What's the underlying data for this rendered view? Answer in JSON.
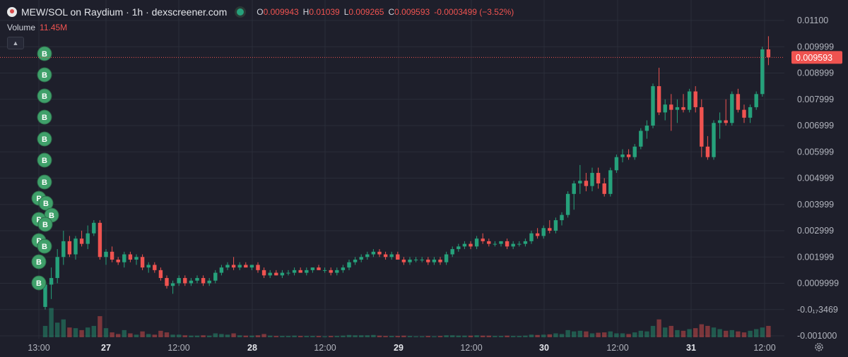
{
  "header": {
    "pair_title": "MEW/SOL on Raydium · 1h · dexscreener.com",
    "open_key": "O",
    "open_val": "0.009943",
    "high_key": "H",
    "high_val": "0.01039",
    "low_key": "L",
    "low_val": "0.009265",
    "close_key": "C",
    "close_val": "0.009593",
    "change": "-0.0003499 (−3.52%)"
  },
  "volume": {
    "label": "Volume",
    "value": "11.45M"
  },
  "icons": {
    "logo": "mew-cat-logo",
    "live": "live-status-dot",
    "collapse": "chevron-up-icon",
    "settings": "gear-icon"
  },
  "colors": {
    "up": "#26a17b",
    "down": "#ef5350",
    "background": "#1e1f2b",
    "grid": "#2a2d39",
    "marker": "#3fa06a"
  },
  "chart_data": {
    "type": "candlestick",
    "price_axis_ticks": [
      "0.01100",
      "0.009999",
      "0.008999",
      "0.007999",
      "0.006999",
      "0.005999",
      "0.004999",
      "0.003999",
      "0.002999",
      "0.001999",
      "0.0009999",
      "-0.0₁₇3469",
      "-0.001000"
    ],
    "current_price_label": "0.009593",
    "time_axis_ticks": [
      "13:00",
      "27",
      "12:00",
      "28",
      "12:00",
      "29",
      "12:00",
      "30",
      "12:00",
      "31",
      "12:00"
    ],
    "y_range": [
      -0.001,
      0.011
    ],
    "volume_max": 1,
    "candles": [
      {
        "o": 0.0001,
        "h": 0.0011,
        "l": 0.0,
        "c": 0.00095,
        "v": 0.35
      },
      {
        "o": 0.00095,
        "h": 0.0016,
        "l": 0.0004,
        "c": 0.0012,
        "v": 0.9
      },
      {
        "o": 0.0012,
        "h": 0.0023,
        "l": 0.001,
        "c": 0.002,
        "v": 0.45
      },
      {
        "o": 0.002,
        "h": 0.003,
        "l": 0.0017,
        "c": 0.0026,
        "v": 0.55
      },
      {
        "o": 0.0026,
        "h": 0.0028,
        "l": 0.002,
        "c": 0.0021,
        "v": 0.3
      },
      {
        "o": 0.0021,
        "h": 0.0028,
        "l": 0.0019,
        "c": 0.0027,
        "v": 0.28
      },
      {
        "o": 0.0027,
        "h": 0.003,
        "l": 0.0024,
        "c": 0.0025,
        "v": 0.22
      },
      {
        "o": 0.0025,
        "h": 0.0032,
        "l": 0.0023,
        "c": 0.0029,
        "v": 0.3
      },
      {
        "o": 0.0029,
        "h": 0.0034,
        "l": 0.0028,
        "c": 0.0033,
        "v": 0.35
      },
      {
        "o": 0.0033,
        "h": 0.0034,
        "l": 0.0019,
        "c": 0.002,
        "v": 0.65
      },
      {
        "o": 0.002,
        "h": 0.0023,
        "l": 0.0017,
        "c": 0.0022,
        "v": 0.28
      },
      {
        "o": 0.0022,
        "h": 0.0024,
        "l": 0.0018,
        "c": 0.0019,
        "v": 0.15
      },
      {
        "o": 0.0019,
        "h": 0.002,
        "l": 0.0017,
        "c": 0.0018,
        "v": 0.1
      },
      {
        "o": 0.0018,
        "h": 0.0022,
        "l": 0.0016,
        "c": 0.0021,
        "v": 0.22
      },
      {
        "o": 0.0021,
        "h": 0.0022,
        "l": 0.0018,
        "c": 0.0019,
        "v": 0.12
      },
      {
        "o": 0.0019,
        "h": 0.0021,
        "l": 0.0017,
        "c": 0.002,
        "v": 0.08
      },
      {
        "o": 0.002,
        "h": 0.0021,
        "l": 0.0015,
        "c": 0.0016,
        "v": 0.18
      },
      {
        "o": 0.0016,
        "h": 0.0018,
        "l": 0.0014,
        "c": 0.0017,
        "v": 0.1
      },
      {
        "o": 0.0017,
        "h": 0.0018,
        "l": 0.0014,
        "c": 0.0015,
        "v": 0.08
      },
      {
        "o": 0.0015,
        "h": 0.0016,
        "l": 0.0011,
        "c": 0.0012,
        "v": 0.2
      },
      {
        "o": 0.0012,
        "h": 0.0013,
        "l": 0.0008,
        "c": 0.0009,
        "v": 0.15
      },
      {
        "o": 0.0009,
        "h": 0.0011,
        "l": 0.0006,
        "c": 0.001,
        "v": 0.08
      },
      {
        "o": 0.001,
        "h": 0.0013,
        "l": 0.0009,
        "c": 0.0012,
        "v": 0.08
      },
      {
        "o": 0.0012,
        "h": 0.0013,
        "l": 0.0009,
        "c": 0.001,
        "v": 0.06
      },
      {
        "o": 0.001,
        "h": 0.0012,
        "l": 0.0009,
        "c": 0.0011,
        "v": 0.05
      },
      {
        "o": 0.0011,
        "h": 0.0013,
        "l": 0.001,
        "c": 0.0012,
        "v": 0.05
      },
      {
        "o": 0.0012,
        "h": 0.0013,
        "l": 0.0009,
        "c": 0.001,
        "v": 0.06
      },
      {
        "o": 0.001,
        "h": 0.0012,
        "l": 0.0009,
        "c": 0.0011,
        "v": 0.05
      },
      {
        "o": 0.0011,
        "h": 0.0015,
        "l": 0.001,
        "c": 0.0014,
        "v": 0.12
      },
      {
        "o": 0.0014,
        "h": 0.0017,
        "l": 0.0013,
        "c": 0.0016,
        "v": 0.1
      },
      {
        "o": 0.0016,
        "h": 0.0018,
        "l": 0.0015,
        "c": 0.0017,
        "v": 0.08
      },
      {
        "o": 0.0017,
        "h": 0.002,
        "l": 0.0015,
        "c": 0.0016,
        "v": 0.12
      },
      {
        "o": 0.0016,
        "h": 0.0018,
        "l": 0.0015,
        "c": 0.0017,
        "v": 0.06
      },
      {
        "o": 0.0017,
        "h": 0.0018,
        "l": 0.0016,
        "c": 0.0016,
        "v": 0.05
      },
      {
        "o": 0.0016,
        "h": 0.0017,
        "l": 0.0015,
        "c": 0.0017,
        "v": 0.05
      },
      {
        "o": 0.0017,
        "h": 0.0018,
        "l": 0.0014,
        "c": 0.0015,
        "v": 0.06
      },
      {
        "o": 0.0015,
        "h": 0.0016,
        "l": 0.0012,
        "c": 0.0013,
        "v": 0.1
      },
      {
        "o": 0.0013,
        "h": 0.0015,
        "l": 0.0012,
        "c": 0.0014,
        "v": 0.05
      },
      {
        "o": 0.0014,
        "h": 0.0015,
        "l": 0.0013,
        "c": 0.0013,
        "v": 0.04
      },
      {
        "o": 0.0013,
        "h": 0.0015,
        "l": 0.0012,
        "c": 0.0014,
        "v": 0.04
      },
      {
        "o": 0.0014,
        "h": 0.0015,
        "l": 0.0013,
        "c": 0.0014,
        "v": 0.04
      },
      {
        "o": 0.0014,
        "h": 0.0016,
        "l": 0.0013,
        "c": 0.0015,
        "v": 0.05
      },
      {
        "o": 0.0015,
        "h": 0.0016,
        "l": 0.0014,
        "c": 0.0014,
        "v": 0.04
      },
      {
        "o": 0.0014,
        "h": 0.0016,
        "l": 0.0013,
        "c": 0.0015,
        "v": 0.04
      },
      {
        "o": 0.0015,
        "h": 0.0016,
        "l": 0.0014,
        "c": 0.0016,
        "v": 0.04
      },
      {
        "o": 0.0016,
        "h": 0.0017,
        "l": 0.0015,
        "c": 0.0015,
        "v": 0.04
      },
      {
        "o": 0.0015,
        "h": 0.0016,
        "l": 0.0014,
        "c": 0.0015,
        "v": 0.03
      },
      {
        "o": 0.0015,
        "h": 0.0016,
        "l": 0.0013,
        "c": 0.0014,
        "v": 0.04
      },
      {
        "o": 0.0014,
        "h": 0.0016,
        "l": 0.0013,
        "c": 0.0015,
        "v": 0.04
      },
      {
        "o": 0.0015,
        "h": 0.0017,
        "l": 0.0014,
        "c": 0.0016,
        "v": 0.05
      },
      {
        "o": 0.0016,
        "h": 0.0019,
        "l": 0.0015,
        "c": 0.0018,
        "v": 0.07
      },
      {
        "o": 0.0018,
        "h": 0.002,
        "l": 0.0017,
        "c": 0.0019,
        "v": 0.06
      },
      {
        "o": 0.0019,
        "h": 0.0021,
        "l": 0.0018,
        "c": 0.002,
        "v": 0.06
      },
      {
        "o": 0.002,
        "h": 0.0022,
        "l": 0.0019,
        "c": 0.0021,
        "v": 0.06
      },
      {
        "o": 0.0021,
        "h": 0.0023,
        "l": 0.002,
        "c": 0.0022,
        "v": 0.07
      },
      {
        "o": 0.0022,
        "h": 0.0023,
        "l": 0.002,
        "c": 0.0021,
        "v": 0.05
      },
      {
        "o": 0.0021,
        "h": 0.0022,
        "l": 0.0019,
        "c": 0.002,
        "v": 0.04
      },
      {
        "o": 0.002,
        "h": 0.0022,
        "l": 0.0019,
        "c": 0.0021,
        "v": 0.04
      },
      {
        "o": 0.0021,
        "h": 0.0022,
        "l": 0.0019,
        "c": 0.0019,
        "v": 0.04
      },
      {
        "o": 0.0019,
        "h": 0.002,
        "l": 0.0017,
        "c": 0.0018,
        "v": 0.05
      },
      {
        "o": 0.0018,
        "h": 0.002,
        "l": 0.0017,
        "c": 0.0019,
        "v": 0.04
      },
      {
        "o": 0.0019,
        "h": 0.002,
        "l": 0.0018,
        "c": 0.0019,
        "v": 0.03
      },
      {
        "o": 0.0019,
        "h": 0.002,
        "l": 0.0018,
        "c": 0.0019,
        "v": 0.03
      },
      {
        "o": 0.0019,
        "h": 0.002,
        "l": 0.0017,
        "c": 0.0018,
        "v": 0.04
      },
      {
        "o": 0.0018,
        "h": 0.002,
        "l": 0.0017,
        "c": 0.0019,
        "v": 0.03
      },
      {
        "o": 0.0019,
        "h": 0.002,
        "l": 0.0017,
        "c": 0.0018,
        "v": 0.04
      },
      {
        "o": 0.0018,
        "h": 0.0022,
        "l": 0.0017,
        "c": 0.0021,
        "v": 0.06
      },
      {
        "o": 0.0021,
        "h": 0.0024,
        "l": 0.002,
        "c": 0.0023,
        "v": 0.06
      },
      {
        "o": 0.0023,
        "h": 0.0025,
        "l": 0.0022,
        "c": 0.0024,
        "v": 0.05
      },
      {
        "o": 0.0024,
        "h": 0.0026,
        "l": 0.0023,
        "c": 0.0025,
        "v": 0.05
      },
      {
        "o": 0.0025,
        "h": 0.0026,
        "l": 0.0023,
        "c": 0.0024,
        "v": 0.05
      },
      {
        "o": 0.0024,
        "h": 0.0028,
        "l": 0.0023,
        "c": 0.0027,
        "v": 0.06
      },
      {
        "o": 0.0027,
        "h": 0.0029,
        "l": 0.0025,
        "c": 0.0026,
        "v": 0.05
      },
      {
        "o": 0.0026,
        "h": 0.0027,
        "l": 0.0024,
        "c": 0.0025,
        "v": 0.05
      },
      {
        "o": 0.0025,
        "h": 0.0026,
        "l": 0.0024,
        "c": 0.0025,
        "v": 0.04
      },
      {
        "o": 0.0025,
        "h": 0.0026,
        "l": 0.0024,
        "c": 0.0026,
        "v": 0.04
      },
      {
        "o": 0.0026,
        "h": 0.0027,
        "l": 0.0023,
        "c": 0.0024,
        "v": 0.05
      },
      {
        "o": 0.0024,
        "h": 0.0026,
        "l": 0.0023,
        "c": 0.0025,
        "v": 0.04
      },
      {
        "o": 0.0025,
        "h": 0.0026,
        "l": 0.0024,
        "c": 0.0025,
        "v": 0.04
      },
      {
        "o": 0.0025,
        "h": 0.0027,
        "l": 0.0024,
        "c": 0.0026,
        "v": 0.05
      },
      {
        "o": 0.0026,
        "h": 0.003,
        "l": 0.0025,
        "c": 0.0029,
        "v": 0.08
      },
      {
        "o": 0.0029,
        "h": 0.0031,
        "l": 0.0027,
        "c": 0.0028,
        "v": 0.07
      },
      {
        "o": 0.0028,
        "h": 0.0032,
        "l": 0.0027,
        "c": 0.0031,
        "v": 0.08
      },
      {
        "o": 0.0031,
        "h": 0.0034,
        "l": 0.0029,
        "c": 0.003,
        "v": 0.09
      },
      {
        "o": 0.003,
        "h": 0.0035,
        "l": 0.0029,
        "c": 0.0034,
        "v": 0.12
      },
      {
        "o": 0.0034,
        "h": 0.0037,
        "l": 0.0032,
        "c": 0.0036,
        "v": 0.1
      },
      {
        "o": 0.0036,
        "h": 0.0045,
        "l": 0.0035,
        "c": 0.0044,
        "v": 0.22
      },
      {
        "o": 0.0044,
        "h": 0.0049,
        "l": 0.0038,
        "c": 0.0048,
        "v": 0.18
      },
      {
        "o": 0.0048,
        "h": 0.0055,
        "l": 0.0044,
        "c": 0.0049,
        "v": 0.2
      },
      {
        "o": 0.0049,
        "h": 0.0052,
        "l": 0.0045,
        "c": 0.0047,
        "v": 0.18
      },
      {
        "o": 0.0047,
        "h": 0.0054,
        "l": 0.0045,
        "c": 0.0052,
        "v": 0.12
      },
      {
        "o": 0.0052,
        "h": 0.0054,
        "l": 0.0046,
        "c": 0.0048,
        "v": 0.14
      },
      {
        "o": 0.0048,
        "h": 0.005,
        "l": 0.0043,
        "c": 0.0044,
        "v": 0.15
      },
      {
        "o": 0.0044,
        "h": 0.0054,
        "l": 0.0043,
        "c": 0.0053,
        "v": 0.18
      },
      {
        "o": 0.0053,
        "h": 0.0059,
        "l": 0.0052,
        "c": 0.0058,
        "v": 0.12
      },
      {
        "o": 0.0058,
        "h": 0.0061,
        "l": 0.0056,
        "c": 0.0059,
        "v": 0.12
      },
      {
        "o": 0.0059,
        "h": 0.0061,
        "l": 0.0057,
        "c": 0.0058,
        "v": 0.1
      },
      {
        "o": 0.0058,
        "h": 0.0063,
        "l": 0.0057,
        "c": 0.0062,
        "v": 0.15
      },
      {
        "o": 0.0062,
        "h": 0.0069,
        "l": 0.0061,
        "c": 0.0068,
        "v": 0.2
      },
      {
        "o": 0.0068,
        "h": 0.0072,
        "l": 0.0065,
        "c": 0.007,
        "v": 0.18
      },
      {
        "o": 0.007,
        "h": 0.0086,
        "l": 0.0069,
        "c": 0.0085,
        "v": 0.35
      },
      {
        "o": 0.0085,
        "h": 0.0092,
        "l": 0.0074,
        "c": 0.0075,
        "v": 0.55
      },
      {
        "o": 0.0075,
        "h": 0.008,
        "l": 0.0072,
        "c": 0.0078,
        "v": 0.3
      },
      {
        "o": 0.0078,
        "h": 0.0082,
        "l": 0.0068,
        "c": 0.0076,
        "v": 0.35
      },
      {
        "o": 0.0076,
        "h": 0.008,
        "l": 0.0071,
        "c": 0.0077,
        "v": 0.22
      },
      {
        "o": 0.0077,
        "h": 0.0082,
        "l": 0.0075,
        "c": 0.0076,
        "v": 0.2
      },
      {
        "o": 0.0076,
        "h": 0.0084,
        "l": 0.0075,
        "c": 0.0083,
        "v": 0.25
      },
      {
        "o": 0.0083,
        "h": 0.0085,
        "l": 0.0075,
        "c": 0.0077,
        "v": 0.28
      },
      {
        "o": 0.0077,
        "h": 0.008,
        "l": 0.0058,
        "c": 0.0062,
        "v": 0.4
      },
      {
        "o": 0.0062,
        "h": 0.0066,
        "l": 0.0057,
        "c": 0.0058,
        "v": 0.35
      },
      {
        "o": 0.0058,
        "h": 0.0072,
        "l": 0.0057,
        "c": 0.0071,
        "v": 0.3
      },
      {
        "o": 0.0071,
        "h": 0.0075,
        "l": 0.0065,
        "c": 0.0072,
        "v": 0.25
      },
      {
        "o": 0.0072,
        "h": 0.008,
        "l": 0.007,
        "c": 0.0071,
        "v": 0.2
      },
      {
        "o": 0.0071,
        "h": 0.0083,
        "l": 0.007,
        "c": 0.0082,
        "v": 0.22
      },
      {
        "o": 0.0082,
        "h": 0.0084,
        "l": 0.0075,
        "c": 0.0076,
        "v": 0.18
      },
      {
        "o": 0.0076,
        "h": 0.0078,
        "l": 0.0071,
        "c": 0.0073,
        "v": 0.15
      },
      {
        "o": 0.0073,
        "h": 0.0078,
        "l": 0.0071,
        "c": 0.0077,
        "v": 0.2
      },
      {
        "o": 0.0077,
        "h": 0.0083,
        "l": 0.0076,
        "c": 0.0082,
        "v": 0.25
      },
      {
        "o": 0.0082,
        "h": 0.01,
        "l": 0.0081,
        "c": 0.0099,
        "v": 0.3
      },
      {
        "o": 0.0099,
        "h": 0.0104,
        "l": 0.0093,
        "c": 0.0096,
        "v": 0.35
      }
    ],
    "trade_markers": [
      "B",
      "B",
      "B",
      "B",
      "B",
      "B",
      "B",
      "P",
      "B",
      "B",
      "P",
      "B",
      "P",
      "B",
      "B",
      "B"
    ]
  }
}
